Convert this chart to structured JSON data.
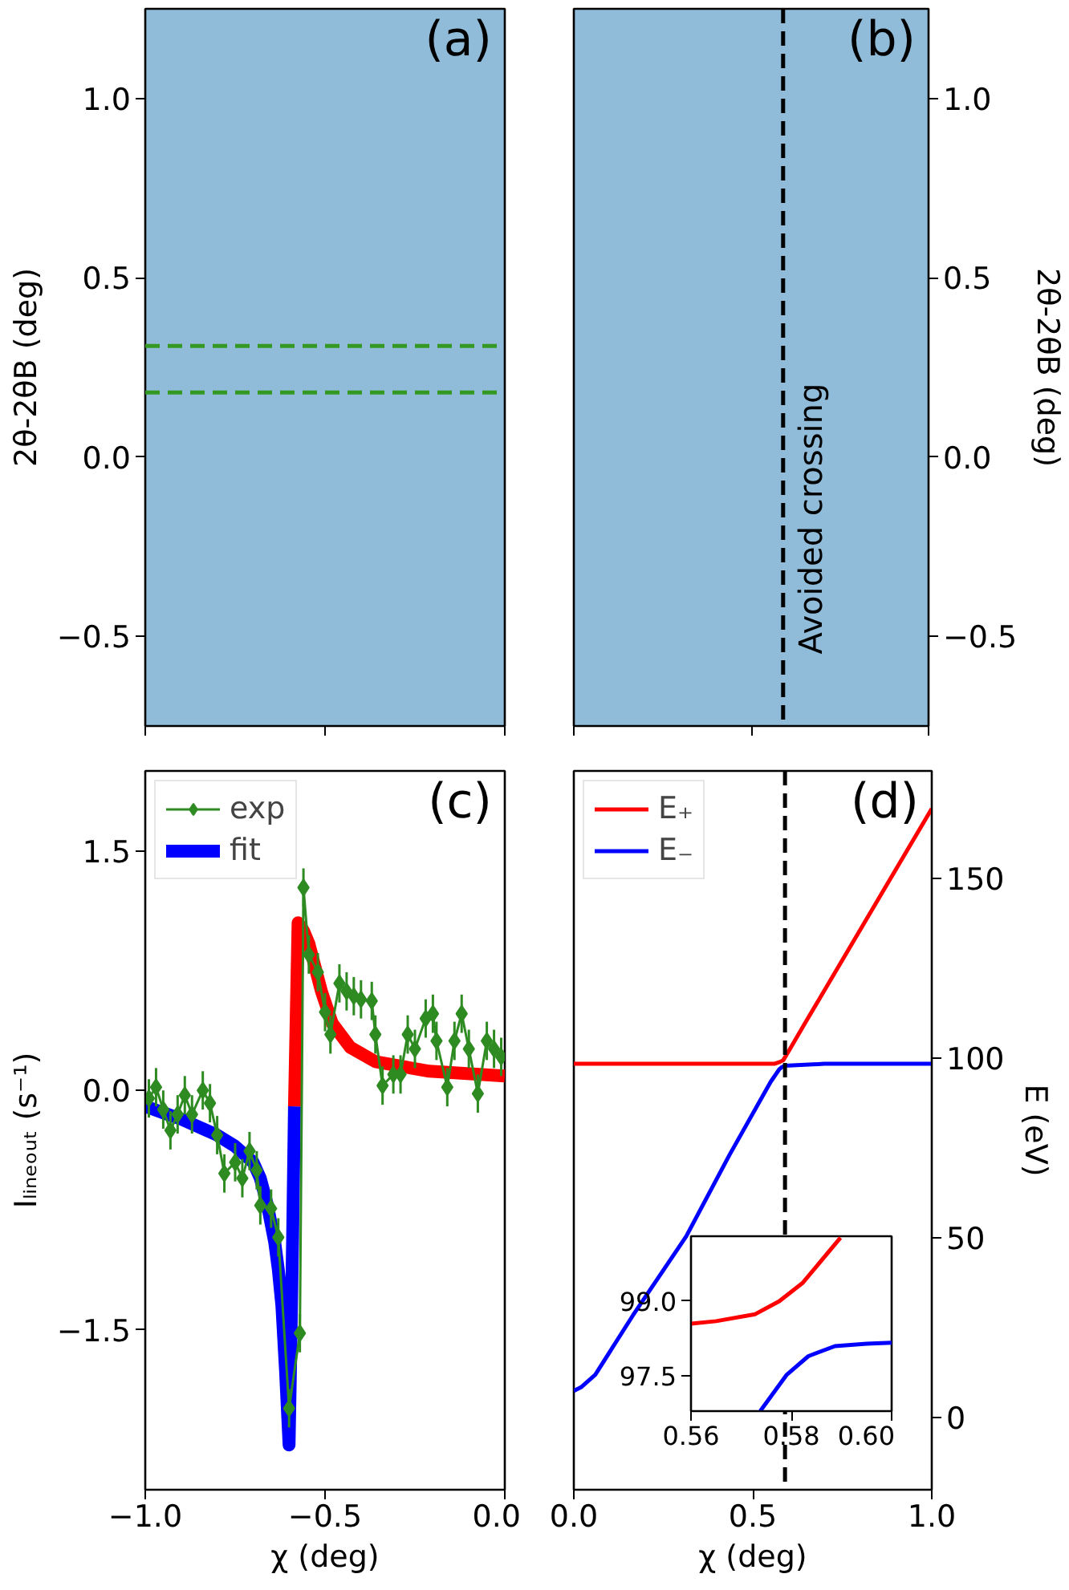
{
  "chart_data": [
    {
      "type": "line",
      "ylabel": "2θ-2θB (deg)",
      "xlim": [
        -1,
        0
      ],
      "xticks": [
        -1,
        -0.5,
        0
      ],
      "ylim": [
        -0.75,
        1.25
      ],
      "yticks": [
        {
          "value": -0.5,
          "label": "−0.5"
        },
        {
          "value": 0,
          "label": "0.0"
        },
        {
          "value": 0.5,
          "label": "0.5"
        },
        {
          "value": 1,
          "label": "1.0"
        }
      ],
      "tick_labels": "y",
      "ref_lines": [
        {
          "axis": "y",
          "value": 0.31,
          "color": "#339922",
          "line_style": "dashed"
        },
        {
          "axis": "y",
          "value": 0.18,
          "color": "#339922",
          "line_style": "dashed"
        }
      ],
      "annotations": [
        "(a)"
      ]
    },
    {
      "type": "line",
      "ylabel": "2θ-2θB (deg)",
      "xlim": [
        0,
        1
      ],
      "xticks": [
        0,
        0.5,
        1
      ],
      "ylim": [
        -0.75,
        1.25
      ],
      "yticks": [
        {
          "value": -0.5,
          "label": "−0.5"
        },
        {
          "value": 0,
          "label": "0.0"
        },
        {
          "value": 0.5,
          "label": "0.5"
        },
        {
          "value": 1,
          "label": "1.0"
        }
      ],
      "tick_labels": "y",
      "ref_lines": [
        {
          "axis": "x",
          "value": 0.59,
          "label": "Avoided crossing",
          "color": "#000000",
          "line_style": "dashed"
        }
      ],
      "annotations": [
        "(b)"
      ]
    },
    {
      "type": "line",
      "xlabel": "χ (deg)",
      "ylabel": "Iₗᵢₙₑₒᵤₜ (s⁻¹)",
      "xlim": [
        -1,
        0
      ],
      "xticks": [
        {
          "value": -1,
          "label": "−1.0"
        },
        {
          "value": -0.5,
          "label": "−0.5"
        },
        {
          "value": 0,
          "label": "0.0"
        }
      ],
      "ylim": [
        -2.5,
        2.0
      ],
      "yticks": [
        {
          "value": -1.5,
          "label": "−1.5"
        },
        {
          "value": 0,
          "label": "0.0"
        },
        {
          "value": 1.5,
          "label": "1.5"
        }
      ],
      "legend": "top left",
      "series": [
        {
          "name": "exp",
          "color": "#2e8b22",
          "marker": "diamond",
          "x": [
            -0.99,
            -0.97,
            -0.95,
            -0.93,
            -0.91,
            -0.89,
            -0.87,
            -0.84,
            -0.82,
            -0.8,
            -0.78,
            -0.75,
            -0.73,
            -0.71,
            -0.69,
            -0.68,
            -0.65,
            -0.63,
            -0.6,
            -0.57,
            -0.56,
            -0.545,
            -0.52,
            -0.5,
            -0.485,
            -0.46,
            -0.44,
            -0.42,
            -0.4,
            -0.37,
            -0.36,
            -0.34,
            -0.31,
            -0.29,
            -0.27,
            -0.25,
            -0.22,
            -0.2,
            -0.19,
            -0.16,
            -0.14,
            -0.12,
            -0.1,
            -0.075,
            -0.05,
            -0.03,
            -0.01
          ],
          "values": [
            -0.05,
            0.02,
            -0.12,
            -0.25,
            -0.15,
            -0.03,
            -0.15,
            0.0,
            -0.08,
            -0.28,
            -0.52,
            -0.45,
            -0.55,
            -0.38,
            -0.5,
            -0.72,
            -0.74,
            -0.92,
            -1.99,
            -1.52,
            1.27,
            0.85,
            0.74,
            0.49,
            0.35,
            0.67,
            0.62,
            0.59,
            0.57,
            0.56,
            0.35,
            0.03,
            0.1,
            0.1,
            0.35,
            0.26,
            0.45,
            0.48,
            0.31,
            0.02,
            0.31,
            0.48,
            0.26,
            -0.02,
            0.31,
            0.26,
            0.21
          ],
          "errors": [
            0.12,
            0.12,
            0.12,
            0.12,
            0.12,
            0.12,
            0.12,
            0.12,
            0.12,
            0.12,
            0.12,
            0.12,
            0.12,
            0.12,
            0.12,
            0.12,
            0.12,
            0.12,
            0.12,
            0.12,
            0.12,
            0.12,
            0.12,
            0.12,
            0.12,
            0.12,
            0.12,
            0.12,
            0.12,
            0.12,
            0.12,
            0.12,
            0.12,
            0.12,
            0.12,
            0.12,
            0.12,
            0.12,
            0.12,
            0.12,
            0.12,
            0.12,
            0.12,
            0.12,
            0.12,
            0.12,
            0.12
          ]
        },
        {
          "name": "fit",
          "color": "#0000ff",
          "x": [
            -1.0,
            -0.95,
            -0.9,
            -0.85,
            -0.8,
            -0.75,
            -0.7,
            -0.68,
            -0.66,
            -0.64,
            -0.63,
            -0.62,
            -0.61,
            -0.6,
            -0.595,
            -0.59,
            -0.585
          ],
          "values": [
            -0.1,
            -0.14,
            -0.18,
            -0.23,
            -0.28,
            -0.35,
            -0.45,
            -0.55,
            -0.72,
            -0.95,
            -1.12,
            -1.35,
            -1.75,
            -2.22,
            -1.6,
            -0.9,
            -0.1
          ]
        },
        {
          "color": "#ff0000",
          "x": [
            -0.585,
            -0.575,
            -0.56,
            -0.545,
            -0.51,
            -0.48,
            -0.43,
            -0.36,
            -0.21,
            0.0
          ],
          "values": [
            -0.1,
            1.05,
            1.0,
            0.92,
            0.62,
            0.42,
            0.27,
            0.18,
            0.12,
            0.09
          ]
        }
      ],
      "annotations": [
        "(c)"
      ]
    },
    {
      "type": "line",
      "xlabel": "χ (deg)",
      "ylabel": "E (eV)",
      "xlim": [
        0,
        1
      ],
      "xticks": [
        {
          "value": 0,
          "label": "0.0"
        },
        {
          "value": 0.5,
          "label": "0.5"
        },
        {
          "value": 1,
          "label": "1.0"
        }
      ],
      "ylim": [
        -20,
        180
      ],
      "yticks": [
        0,
        50,
        100,
        150
      ],
      "legend": "top left",
      "series": [
        {
          "name": "E₊",
          "color": "#ff0000",
          "x": [
            0,
            0.5,
            0.56,
            0.575,
            0.585,
            0.6,
            0.65,
            1.0
          ],
          "values": [
            98.5,
            98.5,
            98.5,
            99,
            99.5,
            102,
            110.5,
            169.5
          ]
        },
        {
          "name": "E₋",
          "color": "#0000ff",
          "x": [
            0,
            0.02,
            0.06,
            0.165,
            0.314,
            0.434,
            0.55,
            0.574,
            0.58,
            0.59,
            0.6,
            0.7,
            1.0
          ],
          "values": [
            7.5,
            8.5,
            12,
            28.5,
            50.5,
            73,
            93.5,
            97,
            97.5,
            98,
            98,
            98.5,
            98.5
          ]
        }
      ],
      "ref_lines": [
        {
          "axis": "x",
          "value": 0.59,
          "color": "#000000",
          "line_style": "dashed"
        }
      ],
      "annotations": [
        "(d)"
      ]
    },
    {
      "type": "line",
      "xlim": [
        0.56,
        0.6
      ],
      "xticks": [
        0.56,
        0.58,
        {
          "value": 0.6,
          "label": "0.60"
        }
      ],
      "ylim": [
        96.8,
        100.3
      ],
      "yticks": [
        97.5,
        {
          "value": 99,
          "label": "99.0"
        }
      ],
      "series": [
        {
          "color": "#ff0000",
          "x": [
            0.56,
            0.565,
            0.5728,
            0.5776,
            0.5823,
            0.5898
          ],
          "values": [
            98.55,
            98.6,
            98.74,
            99.0,
            99.37,
            100.27
          ]
        },
        {
          "color": "#0000ff",
          "x": [
            0.5738,
            0.5791,
            0.5834,
            0.5887,
            0.595,
            0.6
          ],
          "values": [
            96.8,
            97.53,
            97.9,
            98.1,
            98.15,
            98.17
          ]
        }
      ]
    }
  ]
}
